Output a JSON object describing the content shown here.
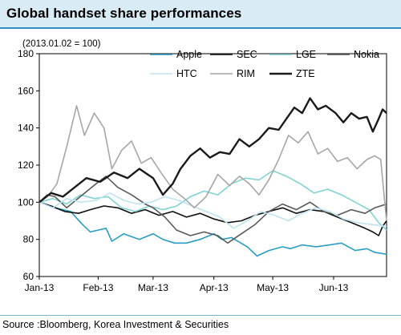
{
  "title": "Global handset share performances",
  "source": "Source :Bloomberg, Korea Investment & Securities",
  "chart_data": {
    "type": "line",
    "note": "(2013.01.02 = 100)",
    "ylim": [
      60,
      180
    ],
    "yticks": [
      60,
      80,
      100,
      120,
      140,
      160,
      180
    ],
    "xlim": [
      "2013-01-02",
      "2013-06-28"
    ],
    "xticks": [
      {
        "label": "Jan-13",
        "date": "2013-01-02"
      },
      {
        "label": "Feb-13",
        "date": "2013-02-01"
      },
      {
        "label": "Mar-13",
        "date": "2013-03-01"
      },
      {
        "label": "Apr-13",
        "date": "2013-04-01"
      },
      {
        "label": "May-13",
        "date": "2013-05-01"
      },
      {
        "label": "Jun-13",
        "date": "2013-06-01"
      }
    ],
    "legend_position": "top",
    "grid": false,
    "series": [
      {
        "name": "Apple",
        "color": "#2a9dc4",
        "width": 1.6,
        "points": [
          [
            "2013-01-02",
            100
          ],
          [
            "2013-01-10",
            97
          ],
          [
            "2013-01-18",
            95
          ],
          [
            "2013-01-24",
            88
          ],
          [
            "2013-01-28",
            84
          ],
          [
            "2013-02-05",
            86
          ],
          [
            "2013-02-08",
            79
          ],
          [
            "2013-02-14",
            83
          ],
          [
            "2013-02-22",
            80
          ],
          [
            "2013-03-01",
            83
          ],
          [
            "2013-03-06",
            80
          ],
          [
            "2013-03-12",
            78
          ],
          [
            "2013-03-18",
            78
          ],
          [
            "2013-03-25",
            80
          ],
          [
            "2013-04-01",
            83
          ],
          [
            "2013-04-05",
            80
          ],
          [
            "2013-04-10",
            81
          ],
          [
            "2013-04-18",
            76
          ],
          [
            "2013-04-23",
            71
          ],
          [
            "2013-04-29",
            74
          ],
          [
            "2013-05-06",
            76
          ],
          [
            "2013-05-10",
            75
          ],
          [
            "2013-05-16",
            77
          ],
          [
            "2013-05-23",
            76
          ],
          [
            "2013-05-30",
            77
          ],
          [
            "2013-06-05",
            78
          ],
          [
            "2013-06-12",
            74
          ],
          [
            "2013-06-18",
            75
          ],
          [
            "2013-06-22",
            73
          ],
          [
            "2013-06-28",
            72
          ]
        ]
      },
      {
        "name": "SEC",
        "color": "#111111",
        "width": 1.6,
        "points": [
          [
            "2013-01-02",
            100
          ],
          [
            "2013-01-08",
            98
          ],
          [
            "2013-01-15",
            95
          ],
          [
            "2013-01-22",
            94
          ],
          [
            "2013-01-28",
            96
          ],
          [
            "2013-02-04",
            98
          ],
          [
            "2013-02-11",
            97
          ],
          [
            "2013-02-18",
            94
          ],
          [
            "2013-02-25",
            96
          ],
          [
            "2013-03-04",
            93
          ],
          [
            "2013-03-11",
            95
          ],
          [
            "2013-03-18",
            92
          ],
          [
            "2013-03-25",
            94
          ],
          [
            "2013-04-01",
            91
          ],
          [
            "2013-04-08",
            89
          ],
          [
            "2013-04-15",
            90
          ],
          [
            "2013-04-22",
            93
          ],
          [
            "2013-04-29",
            95
          ],
          [
            "2013-05-06",
            97
          ],
          [
            "2013-05-13",
            94
          ],
          [
            "2013-05-20",
            96
          ],
          [
            "2013-05-27",
            95
          ],
          [
            "2013-06-03",
            92
          ],
          [
            "2013-06-10",
            89
          ],
          [
            "2013-06-17",
            86
          ],
          [
            "2013-06-21",
            84
          ],
          [
            "2013-06-24",
            82
          ],
          [
            "2013-06-26",
            87
          ],
          [
            "2013-06-28",
            90
          ]
        ]
      },
      {
        "name": "LGE",
        "color": "#7fd4d2",
        "width": 1.6,
        "points": [
          [
            "2013-01-02",
            100
          ],
          [
            "2013-01-09",
            102
          ],
          [
            "2013-01-16",
            99
          ],
          [
            "2013-01-23",
            104
          ],
          [
            "2013-01-30",
            102
          ],
          [
            "2013-02-06",
            103
          ],
          [
            "2013-02-13",
            97
          ],
          [
            "2013-02-20",
            95
          ],
          [
            "2013-02-27",
            98
          ],
          [
            "2013-03-06",
            96
          ],
          [
            "2013-03-13",
            98
          ],
          [
            "2013-03-20",
            103
          ],
          [
            "2013-03-27",
            106
          ],
          [
            "2013-04-03",
            104
          ],
          [
            "2013-04-10",
            110
          ],
          [
            "2013-04-17",
            113
          ],
          [
            "2013-04-24",
            112
          ],
          [
            "2013-05-01",
            117
          ],
          [
            "2013-05-08",
            114
          ],
          [
            "2013-05-15",
            110
          ],
          [
            "2013-05-22",
            105
          ],
          [
            "2013-05-29",
            107
          ],
          [
            "2013-06-05",
            104
          ],
          [
            "2013-06-12",
            100
          ],
          [
            "2013-06-19",
            96
          ],
          [
            "2013-06-24",
            89
          ],
          [
            "2013-06-28",
            85
          ]
        ]
      },
      {
        "name": "Nokia",
        "color": "#595959",
        "width": 1.6,
        "points": [
          [
            "2013-01-02",
            100
          ],
          [
            "2013-01-06",
            104
          ],
          [
            "2013-01-10",
            103
          ],
          [
            "2013-01-16",
            97
          ],
          [
            "2013-01-24",
            104
          ],
          [
            "2013-01-31",
            110
          ],
          [
            "2013-02-05",
            114
          ],
          [
            "2013-02-11",
            108
          ],
          [
            "2013-02-18",
            104
          ],
          [
            "2013-02-25",
            99
          ],
          [
            "2013-03-01",
            97
          ],
          [
            "2013-03-07",
            92
          ],
          [
            "2013-03-13",
            85
          ],
          [
            "2013-03-20",
            82
          ],
          [
            "2013-03-27",
            84
          ],
          [
            "2013-04-03",
            82
          ],
          [
            "2013-04-08",
            78
          ],
          [
            "2013-04-15",
            83
          ],
          [
            "2013-04-22",
            88
          ],
          [
            "2013-04-29",
            95
          ],
          [
            "2013-05-06",
            99
          ],
          [
            "2013-05-13",
            96
          ],
          [
            "2013-05-20",
            100
          ],
          [
            "2013-05-27",
            95
          ],
          [
            "2013-06-03",
            93
          ],
          [
            "2013-06-10",
            96
          ],
          [
            "2013-06-17",
            94
          ],
          [
            "2013-06-22",
            97
          ],
          [
            "2013-06-28",
            99
          ]
        ]
      },
      {
        "name": "HTC",
        "color": "#bfe3ef",
        "width": 1.6,
        "points": [
          [
            "2013-01-02",
            100
          ],
          [
            "2013-01-09",
            97
          ],
          [
            "2013-01-16",
            102
          ],
          [
            "2013-01-23",
            100
          ],
          [
            "2013-01-31",
            101
          ],
          [
            "2013-02-07",
            105
          ],
          [
            "2013-02-14",
            101
          ],
          [
            "2013-02-21",
            99
          ],
          [
            "2013-02-28",
            100
          ],
          [
            "2013-03-07",
            103
          ],
          [
            "2013-03-14",
            101
          ],
          [
            "2013-03-21",
            98
          ],
          [
            "2013-03-28",
            95
          ],
          [
            "2013-04-04",
            92
          ],
          [
            "2013-04-11",
            86
          ],
          [
            "2013-04-18",
            90
          ],
          [
            "2013-04-25",
            95
          ],
          [
            "2013-05-02",
            93
          ],
          [
            "2013-05-09",
            90
          ],
          [
            "2013-05-16",
            94
          ],
          [
            "2013-05-23",
            97
          ],
          [
            "2013-05-30",
            95
          ],
          [
            "2013-06-06",
            91
          ],
          [
            "2013-06-13",
            89
          ],
          [
            "2013-06-20",
            88
          ],
          [
            "2013-06-28",
            87
          ]
        ]
      },
      {
        "name": "RIM",
        "color": "#a6a6a6",
        "width": 1.6,
        "points": [
          [
            "2013-01-02",
            100
          ],
          [
            "2013-01-07",
            104
          ],
          [
            "2013-01-11",
            110
          ],
          [
            "2013-01-16",
            130
          ],
          [
            "2013-01-21",
            152
          ],
          [
            "2013-01-25",
            136
          ],
          [
            "2013-01-30",
            148
          ],
          [
            "2013-02-04",
            140
          ],
          [
            "2013-02-08",
            118
          ],
          [
            "2013-02-13",
            128
          ],
          [
            "2013-02-18",
            133
          ],
          [
            "2013-02-23",
            121
          ],
          [
            "2013-02-28",
            124
          ],
          [
            "2013-03-05",
            116
          ],
          [
            "2013-03-11",
            107
          ],
          [
            "2013-03-17",
            102
          ],
          [
            "2013-03-22",
            97
          ],
          [
            "2013-03-28",
            103
          ],
          [
            "2013-04-03",
            115
          ],
          [
            "2013-04-09",
            109
          ],
          [
            "2013-04-14",
            114
          ],
          [
            "2013-04-19",
            110
          ],
          [
            "2013-04-24",
            104
          ],
          [
            "2013-04-29",
            112
          ],
          [
            "2013-05-04",
            123
          ],
          [
            "2013-05-09",
            136
          ],
          [
            "2013-05-14",
            132
          ],
          [
            "2013-05-19",
            138
          ],
          [
            "2013-05-24",
            126
          ],
          [
            "2013-05-29",
            129
          ],
          [
            "2013-06-03",
            122
          ],
          [
            "2013-06-08",
            124
          ],
          [
            "2013-06-13",
            118
          ],
          [
            "2013-06-18",
            123
          ],
          [
            "2013-06-22",
            125
          ],
          [
            "2013-06-25",
            123
          ],
          [
            "2013-06-26",
            112
          ],
          [
            "2013-06-28",
            90
          ]
        ]
      },
      {
        "name": "ZTE",
        "color": "#1a1a1a",
        "width": 2.4,
        "points": [
          [
            "2013-01-02",
            100
          ],
          [
            "2013-01-08",
            105
          ],
          [
            "2013-01-14",
            103
          ],
          [
            "2013-01-20",
            108
          ],
          [
            "2013-01-26",
            113
          ],
          [
            "2013-02-02",
            111
          ],
          [
            "2013-02-09",
            116
          ],
          [
            "2013-02-16",
            113
          ],
          [
            "2013-02-22",
            118
          ],
          [
            "2013-03-01",
            113
          ],
          [
            "2013-03-06",
            104
          ],
          [
            "2013-03-11",
            110
          ],
          [
            "2013-03-15",
            118
          ],
          [
            "2013-03-20",
            125
          ],
          [
            "2013-03-25",
            129
          ],
          [
            "2013-03-30",
            124
          ],
          [
            "2013-04-04",
            127
          ],
          [
            "2013-04-09",
            126
          ],
          [
            "2013-04-14",
            134
          ],
          [
            "2013-04-19",
            130
          ],
          [
            "2013-04-24",
            134
          ],
          [
            "2013-04-29",
            140
          ],
          [
            "2013-05-04",
            139
          ],
          [
            "2013-05-08",
            145
          ],
          [
            "2013-05-12",
            151
          ],
          [
            "2013-05-16",
            148
          ],
          [
            "2013-05-20",
            156
          ],
          [
            "2013-05-24",
            150
          ],
          [
            "2013-05-28",
            152
          ],
          [
            "2013-06-02",
            148
          ],
          [
            "2013-06-06",
            143
          ],
          [
            "2013-06-10",
            148
          ],
          [
            "2013-06-14",
            145
          ],
          [
            "2013-06-18",
            146
          ],
          [
            "2013-06-21",
            138
          ],
          [
            "2013-06-24",
            145
          ],
          [
            "2013-06-26",
            150
          ],
          [
            "2013-06-28",
            148
          ]
        ]
      }
    ]
  }
}
